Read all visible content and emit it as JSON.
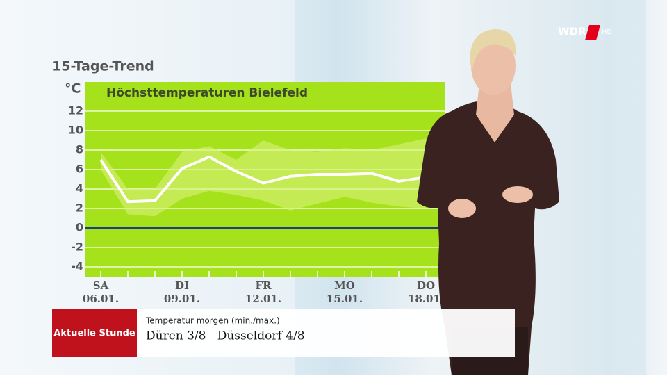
{
  "chart_data": {
    "type": "line",
    "title": "15-Tage-Trend",
    "subtitle": "Höchsttemperaturen Bielefeld",
    "y_label": "°C",
    "categories": [
      "06.01.",
      null,
      null,
      "09.01.",
      null,
      null,
      "12.01.",
      null,
      null,
      "15.01.",
      null,
      null,
      "18.01."
    ],
    "weekdays": [
      "SA",
      null,
      null,
      "DI",
      null,
      null,
      "FR",
      null,
      null,
      "MO",
      null,
      null,
      "DO"
    ],
    "series": [
      {
        "color": "#ffffff",
        "values": [
          7.0,
          2.7,
          2.8,
          6.1,
          7.3,
          5.8,
          4.6,
          5.3,
          5.5,
          5.5,
          5.6,
          4.8,
          5.2
        ]
      }
    ],
    "band": {
      "color": "#d8f07a",
      "upper": [
        7.8,
        4.0,
        4.0,
        7.8,
        8.4,
        7.0,
        9.0,
        8.0,
        7.8,
        8.2,
        8.0,
        8.6,
        9.2
      ],
      "lower": [
        6.0,
        1.4,
        1.2,
        3.0,
        3.8,
        3.4,
        2.8,
        1.8,
        2.5,
        3.2,
        2.6,
        2.2,
        2.0
      ]
    },
    "ylim": [
      -5,
      15
    ],
    "yticks": [
      -4,
      -2,
      0,
      2,
      4,
      6,
      8,
      10,
      12
    ],
    "grid": true,
    "plot_color": "#a6e21c",
    "zero_line_color": "#1d3c8c"
  },
  "logo": "WDR",
  "logo_suffix": "HD",
  "ticker": {
    "brand": "Aktuelle Stunde",
    "caption": "Temperatur morgen (min./max.)",
    "text": "Düren 3/8   Düsseldorf 4/8"
  }
}
